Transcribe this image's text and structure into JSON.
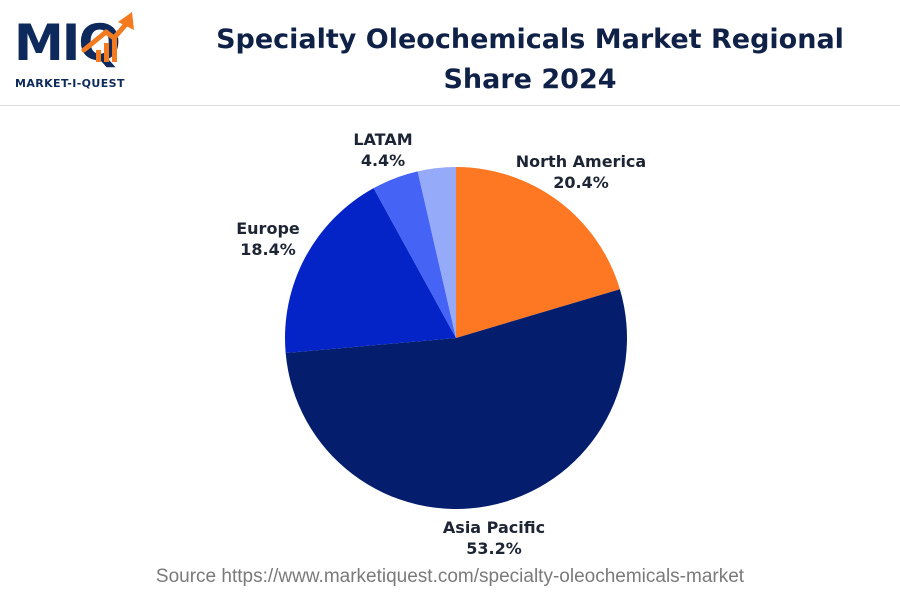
{
  "logo": {
    "letters_left": "MI",
    "letter_right": "Q",
    "subtitle": "MARKET-I-QUEST",
    "colors": {
      "navy": "#0e2a5c",
      "orange": "#f47a20"
    }
  },
  "header": {
    "title": "Specialty Oleochemicals Market Regional Share 2024"
  },
  "chart_data": {
    "type": "pie",
    "title": "Specialty Oleochemicals Market Regional Share 2024",
    "start_angle_deg": 0,
    "direction": "clockwise",
    "slices": [
      {
        "name": "North America",
        "value": 20.4,
        "label": "20.4%",
        "color": "#fe7722"
      },
      {
        "name": "Asia Pacific",
        "value": 53.2,
        "label": "53.2%",
        "color": "#041e6d"
      },
      {
        "name": "Europe",
        "value": 18.4,
        "label": "18.4%",
        "color": "#0424c8"
      },
      {
        "name": "LATAM",
        "value": 4.4,
        "label": "4.4%",
        "color": "#4563f4"
      },
      {
        "name": "",
        "value": 3.6,
        "label": "",
        "color": "#96aafa"
      }
    ]
  },
  "footer": {
    "source": "Source https://www.marketiquest.com/specialty-oleochemicals-market"
  }
}
